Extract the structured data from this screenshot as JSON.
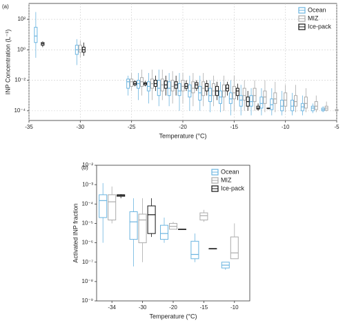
{
  "chart_data": [
    {
      "type": "box",
      "title": "(a)",
      "x_label": "Temperature (°C)",
      "y_label": "INP Concentration (L⁻¹)",
      "log_y": true,
      "grid": true,
      "legend": "upper right",
      "xlim": [
        -35,
        -5
      ],
      "xticks": [
        -35,
        -30,
        -25,
        -20,
        -15,
        -10,
        -5
      ],
      "ylim": [
        2.3e-05,
        1100
      ],
      "yticks": [
        {
          "value": 0.0001,
          "label": "10⁻⁴"
        },
        {
          "value": 0.01,
          "label": "10⁻²"
        },
        {
          "value": 1,
          "label": "10⁰"
        },
        {
          "value": 100,
          "label": "10²"
        }
      ],
      "series": [
        {
          "name": "Ocean",
          "color": "#6ab4e0",
          "x": [
            -34,
            -30,
            -25,
            -24,
            -23,
            -22,
            -21,
            -20,
            -19,
            -18,
            -17,
            -16,
            -15,
            -14,
            -13,
            -12,
            -11,
            -10,
            -9,
            -8,
            -7,
            -6
          ],
          "boxes": [
            [
              0.3,
              3,
              8,
              30,
              300
            ],
            [
              0.1,
              0.5,
              1,
              2,
              5
            ],
            [
              0.001,
              0.003,
              0.008,
              0.012,
              0.02
            ],
            [
              0.0005,
              0.003,
              0.006,
              0.01,
              0.03
            ],
            [
              0.0003,
              0.002,
              0.004,
              0.008,
              0.03
            ],
            [
              0.0002,
              0.001,
              0.003,
              0.01,
              0.05
            ],
            [
              0.0002,
              0.001,
              0.003,
              0.008,
              0.03
            ],
            [
              0.0001,
              0.001,
              0.002,
              0.006,
              0.03
            ],
            [
              0.0001,
              0.0008,
              0.002,
              0.005,
              0.02
            ],
            [
              0.0001,
              0.0005,
              0.0015,
              0.004,
              0.02
            ],
            [
              8e-05,
              0.0004,
              0.001,
              0.003,
              0.01
            ],
            [
              8e-05,
              0.0003,
              0.0008,
              0.002,
              0.008
            ],
            [
              5e-05,
              0.0003,
              0.0006,
              0.0015,
              0.01
            ],
            [
              5e-05,
              0.0002,
              0.0005,
              0.001,
              0.005
            ],
            [
              5e-05,
              0.0002,
              0.0004,
              0.001,
              0.003
            ],
            [
              5e-05,
              0.00015,
              0.0003,
              0.0008,
              0.003
            ],
            [
              5e-05,
              0.00012,
              0.00025,
              0.0006,
              0.003
            ],
            [
              5e-05,
              0.0001,
              0.0002,
              0.0005,
              0.002
            ],
            [
              5e-05,
              0.0001,
              0.0002,
              0.0005,
              0.0015
            ],
            [
              5e-05,
              0.0001,
              0.00018,
              0.0003,
              0.001
            ],
            [
              7e-05,
              0.0001,
              0.00015,
              0.0002,
              0.0003
            ],
            [
              8e-05,
              0.0001,
              0.00012,
              0.00015,
              0.0002
            ]
          ]
        },
        {
          "name": "MIZ",
          "color": "#aaaaaa",
          "x": [
            -30,
            -25,
            -24,
            -23,
            -22,
            -21,
            -20,
            -19,
            -18,
            -17,
            -16,
            -15,
            -14,
            -13,
            -12,
            -11,
            -10,
            -9,
            -8,
            -7,
            -6,
            -5
          ],
          "boxes": [
            [
              0.3,
              0.7,
              1,
              2,
              4
            ],
            [
              0.002,
              0.004,
              0.008,
              0.012,
              0.03
            ],
            [
              0.001,
              0.004,
              0.008,
              0.015,
              0.05
            ],
            [
              0.0005,
              0.003,
              0.006,
              0.012,
              0.05
            ],
            [
              0.0005,
              0.002,
              0.005,
              0.012,
              0.05
            ],
            [
              0.0003,
              0.002,
              0.004,
              0.01,
              0.04
            ],
            [
              0.0003,
              0.002,
              0.004,
              0.01,
              0.03
            ],
            [
              0.0002,
              0.0015,
              0.003,
              0.008,
              0.03
            ],
            [
              0.0002,
              0.001,
              0.003,
              0.008,
              0.03
            ],
            [
              0.0002,
              0.001,
              0.002,
              0.006,
              0.02
            ],
            [
              0.0001,
              0.0008,
              0.002,
              0.005,
              0.02
            ],
            [
              0.0001,
              0.0006,
              0.0015,
              0.004,
              0.02
            ],
            [
              0.0001,
              0.0005,
              0.001,
              0.003,
              0.01
            ],
            [
              0.0001,
              0.0004,
              0.001,
              0.003,
              0.01
            ],
            [
              8e-05,
              0.0003,
              0.0008,
              0.002,
              0.01
            ],
            [
              8e-05,
              0.0003,
              0.0006,
              0.0015,
              0.008
            ],
            [
              8e-05,
              0.0002,
              0.0005,
              0.0015,
              0.005
            ],
            [
              8e-05,
              0.0002,
              0.0004,
              0.001,
              0.005
            ],
            [
              8e-05,
              0.00015,
              0.0003,
              0.0008,
              0.003
            ],
            [
              8e-05,
              0.00012,
              0.0002,
              0.0004,
              0.001
            ],
            [
              9e-05,
              0.00011,
              0.00015,
              0.0002,
              0.0004
            ],
            [
              9e-05,
              0.0001,
              0.00011,
              0.00012,
              0.00013
            ]
          ]
        },
        {
          "name": "Ice-pack",
          "color": "#111111",
          "x": [
            -34,
            -30,
            -25,
            -24,
            -23,
            -22,
            -21,
            -20,
            -19,
            -18,
            -17,
            -16,
            -15,
            -14,
            -13,
            -12
          ],
          "boxes": [
            [
              1.5,
              2,
              2.5,
              3,
              3.5
            ],
            [
              0.4,
              0.7,
              1,
              1.5,
              3
            ],
            [
              0.004,
              0.005,
              0.006,
              0.008,
              0.01
            ],
            [
              0.004,
              0.005,
              0.006,
              0.007,
              0.009
            ],
            [
              0.002,
              0.004,
              0.006,
              0.01,
              0.02
            ],
            [
              0.001,
              0.003,
              0.005,
              0.009,
              0.02
            ],
            [
              0.001,
              0.003,
              0.005,
              0.008,
              0.02
            ],
            [
              0.002,
              0.003,
              0.004,
              0.006,
              0.01
            ],
            [
              0.002,
              0.003,
              0.005,
              0.007,
              0.01
            ],
            [
              0.001,
              0.002,
              0.004,
              0.006,
              0.01
            ],
            [
              0.0005,
              0.001,
              0.002,
              0.004,
              0.008
            ],
            [
              0.001,
              0.002,
              0.003,
              0.005,
              0.008
            ],
            [
              0.0005,
              0.001,
              0.002,
              0.003,
              0.006
            ],
            [
              0.0001,
              0.0002,
              0.0004,
              0.0008,
              0.002
            ],
            [
              0.0001,
              0.00013,
              0.00015,
              0.0002,
              0.0003
            ],
            [
              0.00013,
              0.00014,
              0.00014,
              0.00015,
              0.00015
            ]
          ]
        }
      ]
    },
    {
      "type": "box",
      "title": "(b)",
      "x_label": "Temperature (°C)",
      "y_label": "Activated INP fraction",
      "log_y": true,
      "grid": false,
      "legend": "upper right",
      "categories": [
        "-34",
        "-30",
        "-20",
        "-15",
        "-10"
      ],
      "ylim": [
        1e-09,
        0.01
      ],
      "yticks": [
        {
          "value": 1e-09,
          "label": "10⁻⁹"
        },
        {
          "value": 1e-08,
          "label": "10⁻⁸"
        },
        {
          "value": 1e-07,
          "label": "10⁻⁷"
        },
        {
          "value": 1e-06,
          "label": "10⁻⁶"
        },
        {
          "value": 1e-05,
          "label": "10⁻⁵"
        },
        {
          "value": 0.0001,
          "label": "10⁻⁴"
        },
        {
          "value": 0.001,
          "label": "10⁻³"
        },
        {
          "value": 0.01,
          "label": "10⁻²"
        }
      ],
      "series": [
        {
          "name": "Ocean",
          "color": "#6ab4e0",
          "boxes": [
            [
              1e-06,
              2e-05,
              0.00015,
              0.0003,
              0.0012
            ],
            [
              6e-08,
              1.5e-06,
              1.2e-05,
              4e-05,
              0.0002
            ],
            [
              1e-06,
              1.5e-06,
              3e-06,
              8e-06,
              2e-05
            ],
            [
              1e-07,
              1.5e-07,
              2.5e-07,
              1.2e-06,
              3e-06
            ],
            [
              4e-08,
              5e-08,
              7e-08,
              1e-07,
              1e-07
            ]
          ]
        },
        {
          "name": "MIZ",
          "color": "#aaaaaa",
          "boxes": [
            [
              1e-05,
              1.5e-05,
              0.00013,
              0.0003,
              0.0008
            ],
            [
              1e-07,
              1e-06,
              1.5e-05,
              3e-05,
              0.0002
            ],
            [
              5e-06,
              5e-06,
              7e-06,
              1e-05,
              1.2e-05
            ],
            [
              1.2e-05,
              1.5e-05,
              2.5e-05,
              3.5e-05,
              5e-05
            ],
            [
              1.5e-07,
              1.5e-07,
              3e-07,
              2e-06,
              1e-05
            ]
          ]
        },
        {
          "name": "Ice-pack",
          "color": "#111111",
          "boxes": [
            [
              0.0002,
              0.00025,
              0.00028,
              0.0003,
              0.00032
            ],
            [
              2e-06,
              3e-06,
              2.8e-05,
              8e-05,
              0.0002
            ],
            [
              5e-06,
              5e-06,
              5e-06,
              5e-06,
              5e-06
            ],
            [
              5e-07,
              5e-07,
              5e-07,
              5e-07,
              5e-07
            ],
            null
          ]
        }
      ]
    }
  ]
}
